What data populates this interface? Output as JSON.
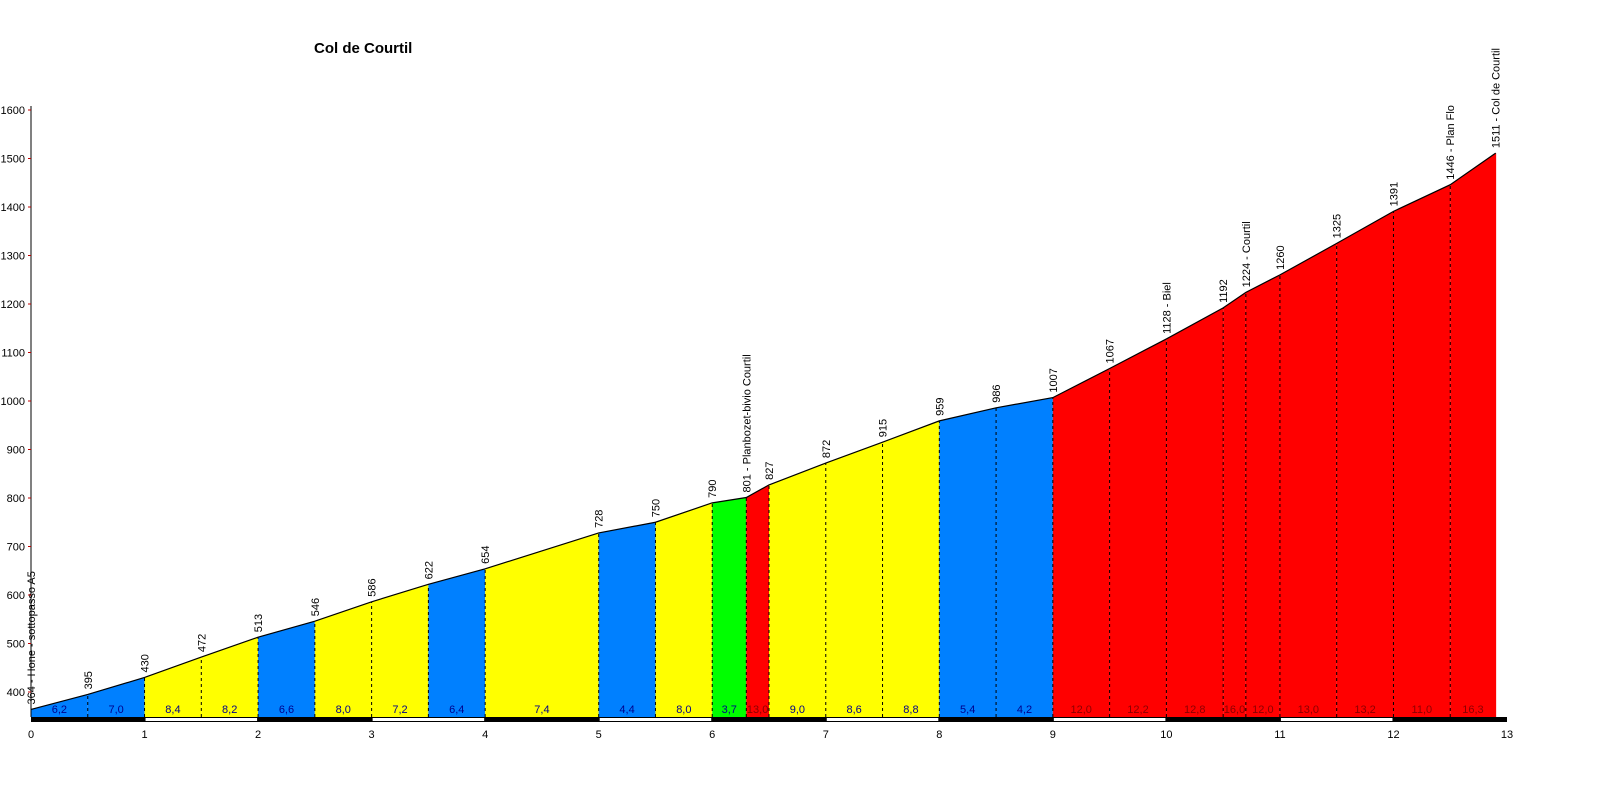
{
  "chart_data": {
    "type": "area",
    "title": "Col de Courtil",
    "xlabel": "",
    "ylabel": "",
    "xlim": [
      0,
      13
    ],
    "ylim": [
      340,
      1600
    ],
    "x_ticks": [
      "0",
      "1",
      "2",
      "3",
      "4",
      "5",
      "6",
      "7",
      "8",
      "9",
      "10",
      "11",
      "12",
      "13"
    ],
    "y_ticks": [
      "400",
      "500",
      "600",
      "700",
      "800",
      "900",
      "1000",
      "1100",
      "1200",
      "1300",
      "1400",
      "1500",
      "1600"
    ],
    "grid": false,
    "legend": null,
    "points": [
      {
        "km": 0,
        "elev": 364,
        "label": "364 - Hone - sottopasso A5"
      },
      {
        "km": 0.5,
        "elev": 395,
        "label": "395"
      },
      {
        "km": 1,
        "elev": 430,
        "label": "430"
      },
      {
        "km": 1.5,
        "elev": 472,
        "label": "472"
      },
      {
        "km": 2,
        "elev": 513,
        "label": "513"
      },
      {
        "km": 2.5,
        "elev": 546,
        "label": "546"
      },
      {
        "km": 3,
        "elev": 586,
        "label": "586"
      },
      {
        "km": 3.5,
        "elev": 622,
        "label": "622"
      },
      {
        "km": 4,
        "elev": 654,
        "label": "654"
      },
      {
        "km": 5,
        "elev": 728,
        "label": "728"
      },
      {
        "km": 5.5,
        "elev": 750,
        "label": "750"
      },
      {
        "km": 6,
        "elev": 790,
        "label": "790"
      },
      {
        "km": 6.3,
        "elev": 801,
        "label": "801 - Planbozet-bivio Courtil"
      },
      {
        "km": 6.5,
        "elev": 827,
        "label": "827"
      },
      {
        "km": 7,
        "elev": 872,
        "label": "872"
      },
      {
        "km": 7.5,
        "elev": 915,
        "label": "915"
      },
      {
        "km": 8,
        "elev": 959,
        "label": "959"
      },
      {
        "km": 8.5,
        "elev": 986,
        "label": "986"
      },
      {
        "km": 9,
        "elev": 1007,
        "label": "1007"
      },
      {
        "km": 9.5,
        "elev": 1067,
        "label": "1067"
      },
      {
        "km": 10,
        "elev": 1128,
        "label": "1128 - Biel"
      },
      {
        "km": 10.5,
        "elev": 1192,
        "label": "1192"
      },
      {
        "km": 10.7,
        "elev": 1224,
        "label": "1224 - Courtil"
      },
      {
        "km": 11,
        "elev": 1260,
        "label": "1260"
      },
      {
        "km": 11.5,
        "elev": 1325,
        "label": "1325"
      },
      {
        "km": 12,
        "elev": 1391,
        "label": "1391"
      },
      {
        "km": 12.5,
        "elev": 1446,
        "label": "1446 - Plan Flo"
      },
      {
        "km": 12.9,
        "elev": 1511,
        "label": "1511 - Col de Courtil"
      }
    ],
    "segments": [
      {
        "from": 0,
        "to": 0.5,
        "gradient": "6,2",
        "color": "#0080FF"
      },
      {
        "from": 0.5,
        "to": 1,
        "gradient": "7,0",
        "color": "#0080FF"
      },
      {
        "from": 1,
        "to": 1.5,
        "gradient": "8,4",
        "color": "#FFFF00"
      },
      {
        "from": 1.5,
        "to": 2,
        "gradient": "8,2",
        "color": "#FFFF00"
      },
      {
        "from": 2,
        "to": 2.5,
        "gradient": "6,6",
        "color": "#0080FF"
      },
      {
        "from": 2.5,
        "to": 3,
        "gradient": "8,0",
        "color": "#FFFF00"
      },
      {
        "from": 3,
        "to": 3.5,
        "gradient": "7,2",
        "color": "#FFFF00"
      },
      {
        "from": 3.5,
        "to": 4,
        "gradient": "6,4",
        "color": "#0080FF"
      },
      {
        "from": 4,
        "to": 5,
        "gradient": "7,4",
        "color": "#FFFF00"
      },
      {
        "from": 5,
        "to": 5.5,
        "gradient": "4,4",
        "color": "#0080FF"
      },
      {
        "from": 5.5,
        "to": 6,
        "gradient": "8,0",
        "color": "#FFFF00"
      },
      {
        "from": 6,
        "to": 6.3,
        "gradient": "3,7",
        "color": "#00FF00"
      },
      {
        "from": 6.3,
        "to": 6.5,
        "gradient": "13,0",
        "color": "#FF0000"
      },
      {
        "from": 6.5,
        "to": 7,
        "gradient": "9,0",
        "color": "#FFFF00"
      },
      {
        "from": 7,
        "to": 7.5,
        "gradient": "8,6",
        "color": "#FFFF00"
      },
      {
        "from": 7.5,
        "to": 8,
        "gradient": "8,8",
        "color": "#FFFF00"
      },
      {
        "from": 8,
        "to": 8.5,
        "gradient": "5,4",
        "color": "#0080FF"
      },
      {
        "from": 8.5,
        "to": 9,
        "gradient": "4,2",
        "color": "#0080FF"
      },
      {
        "from": 9,
        "to": 9.5,
        "gradient": "12,0",
        "color": "#FF0000"
      },
      {
        "from": 9.5,
        "to": 10,
        "gradient": "12,2",
        "color": "#FF0000"
      },
      {
        "from": 10,
        "to": 10.5,
        "gradient": "12,8",
        "color": "#FF0000"
      },
      {
        "from": 10.5,
        "to": 10.7,
        "gradient": "16,0",
        "color": "#FF0000"
      },
      {
        "from": 10.7,
        "to": 11,
        "gradient": "12,0",
        "color": "#FF0000"
      },
      {
        "from": 11,
        "to": 11.5,
        "gradient": "13,0",
        "color": "#FF0000"
      },
      {
        "from": 11.5,
        "to": 12,
        "gradient": "13,2",
        "color": "#FF0000"
      },
      {
        "from": 12,
        "to": 12.5,
        "gradient": "11,0",
        "color": "#FF0000"
      },
      {
        "from": 12.5,
        "to": 12.9,
        "gradient": "16,3",
        "color": "#FF0000"
      }
    ],
    "colors": {
      "blue": "#0080FF",
      "yellow": "#FFFF00",
      "green": "#00FF00",
      "red": "#FF0000"
    }
  }
}
